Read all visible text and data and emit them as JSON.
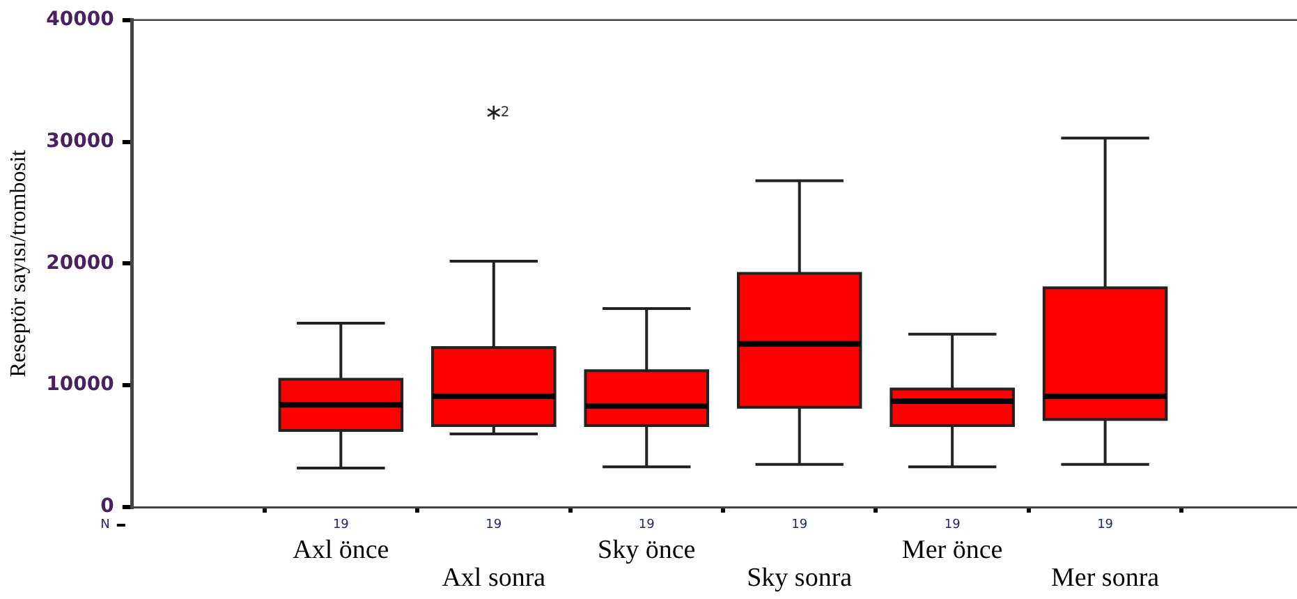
{
  "chart_data": {
    "type": "box",
    "ylabel": "Reseptör sayısı/trombosit",
    "categories": [
      "Axl önce",
      "Axl sonra",
      "Sky önce",
      "Sky sonra",
      "Mer önce",
      "Mer sonra"
    ],
    "series": [
      {
        "color": "#ff0000",
        "boxes": [
          {
            "low": 3200,
            "q1": 6300,
            "median": 8400,
            "q3": 10500,
            "high": 15100
          },
          {
            "low": 6000,
            "q1": 6700,
            "median": 9100,
            "q3": 13100,
            "high": 20200,
            "outliers": [
              32400
            ]
          },
          {
            "low": 3300,
            "q1": 6700,
            "median": 8300,
            "q3": 11200,
            "high": 16300
          },
          {
            "low": 3500,
            "q1": 8200,
            "median": 13400,
            "q3": 19200,
            "high": 26800
          },
          {
            "low": 3300,
            "q1": 6700,
            "median": 8700,
            "q3": 9700,
            "high": 14200
          },
          {
            "low": 3500,
            "q1": 7200,
            "median": 9100,
            "q3": 18000,
            "high": 30300
          }
        ]
      }
    ],
    "ylim": [
      0,
      40000
    ],
    "yticks": [
      0,
      10000,
      20000,
      30000,
      40000
    ],
    "grid": false,
    "legend": false,
    "marker": "star",
    "annotations": [
      "2",
      "N",
      "19",
      "19",
      "19",
      "19",
      "19",
      "19"
    ]
  }
}
